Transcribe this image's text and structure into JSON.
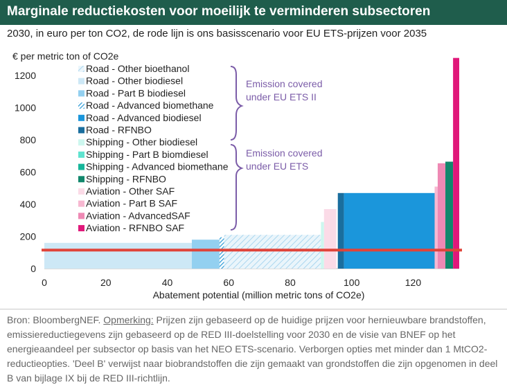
{
  "header": {
    "title": "Marginale reductiekosten voor moeilijk te verminderen subsectoren",
    "subtitle": "2030, in euro per ton CO2, de rode lijn is ons basisscenario voor EU ETS-prijzen voor 2035"
  },
  "chart_data": {
    "type": "bar",
    "subtype": "marginal-abatement-cost-curve",
    "ylabel": "€ per metric ton of CO2e",
    "xlabel": "Abatement potential (million metric tons of CO2e)",
    "xlim": [
      0,
      135
    ],
    "ylim": [
      0,
      1300
    ],
    "xticks": [
      0,
      20,
      40,
      60,
      80,
      100,
      120
    ],
    "yticks": [
      0,
      200,
      400,
      600,
      800,
      1000,
      1200
    ],
    "reference_line": {
      "name": "EU ETS price base scenario 2035",
      "value": 115,
      "color": "#e0443a"
    },
    "series": [
      {
        "name": "Road - Other bioethanol",
        "color": "#ddeef7",
        "hatch": true
      },
      {
        "name": "Road - Other biodiesel",
        "color": "#cde8f6",
        "hatch": false
      },
      {
        "name": "Road - Part B biodiesel",
        "color": "#93d0f0",
        "hatch": false
      },
      {
        "name": "Road - Advanced biomethane",
        "color": "#3aa6dd",
        "hatch": true
      },
      {
        "name": "Road - Advanced biodiesel",
        "color": "#1b96db",
        "hatch": false
      },
      {
        "name": "Road - RFNBO",
        "color": "#1a6e9e",
        "hatch": false
      },
      {
        "name": "Shipping - Other biodiesel",
        "color": "#cdf7ef",
        "hatch": false
      },
      {
        "name": "Shipping - Part B biomdiesel",
        "color": "#5fe3cf",
        "hatch": false
      },
      {
        "name": "Shipping - Advanced biomethane",
        "color": "#17b69a",
        "hatch": false
      },
      {
        "name": "Shipping - RFNBO",
        "color": "#11876c",
        "hatch": false
      },
      {
        "name": "Aviation - Other SAF",
        "color": "#fbdbe7",
        "hatch": false
      },
      {
        "name": "Aviation - Part B SAF",
        "color": "#f7b8d1",
        "hatch": false
      },
      {
        "name": "Aviation - AdvancedSAF",
        "color": "#ee89b4",
        "hatch": false
      },
      {
        "name": "Aviation - RFNBO SAF",
        "color": "#e0187a",
        "hatch": false
      }
    ],
    "bars": [
      {
        "series": "Road - Other biodiesel",
        "x_start": 0,
        "x_end": 48,
        "value": 160
      },
      {
        "series": "Road - Part B biodiesel",
        "x_start": 48,
        "x_end": 57,
        "value": 180
      },
      {
        "series": "Road - Advanced biomethane",
        "x_start": 57,
        "x_end": 58.5,
        "value": 195
      },
      {
        "series": "Road - Other bioethanol",
        "x_start": 58.5,
        "x_end": 90,
        "value": 210
      },
      {
        "series": "Shipping - Other biodiesel",
        "x_start": 90,
        "x_end": 91,
        "value": 290
      },
      {
        "series": "Aviation - Other SAF",
        "x_start": 91,
        "x_end": 95,
        "value": 370
      },
      {
        "series": "Road - RFNBO",
        "x_start": 95.5,
        "x_end": 97.5,
        "value": 470
      },
      {
        "series": "Road - Advanced biodiesel",
        "x_start": 97.5,
        "x_end": 127,
        "value": 470
      },
      {
        "series": "Aviation - Part B SAF",
        "x_start": 127,
        "x_end": 128,
        "value": 510
      },
      {
        "series": "Aviation - AdvancedSAF",
        "x_start": 128,
        "x_end": 130.5,
        "value": 655
      },
      {
        "series": "Shipping - RFNBO",
        "x_start": 130.5,
        "x_end": 133,
        "value": 665
      },
      {
        "series": "Aviation - RFNBO SAF",
        "x_start": 133,
        "x_end": 135,
        "value": 1310
      }
    ],
    "annotations": [
      {
        "text": [
          "Emission covered",
          "under EU ETS II"
        ],
        "color": "#7b5ca8"
      },
      {
        "text": [
          "Emission covered",
          "under EU ETS"
        ],
        "color": "#7b5ca8"
      }
    ]
  },
  "footnote": {
    "source": "Bron: BloombergNEF. ",
    "note_label": "Opmerking:",
    "note_text": " Prijzen zijn gebaseerd op de huidige prijzen voor hernieuwbare brandstoffen, emissiereductiegevens zijn gebaseerd op de RED III-doelstelling voor 2030 en de visie van BNEF op het energieaandeel per subsector op basis van het NEO ETS-scenario. Verborgen opties met minder dan 1 MtCO2-reductieopties. 'Deel B' verwijst naar biobrandstoffen die zijn gemaakt van grondstoffen die zijn opgenomen in deel B van bijlage IX bij de RED III-richtlijn."
  }
}
